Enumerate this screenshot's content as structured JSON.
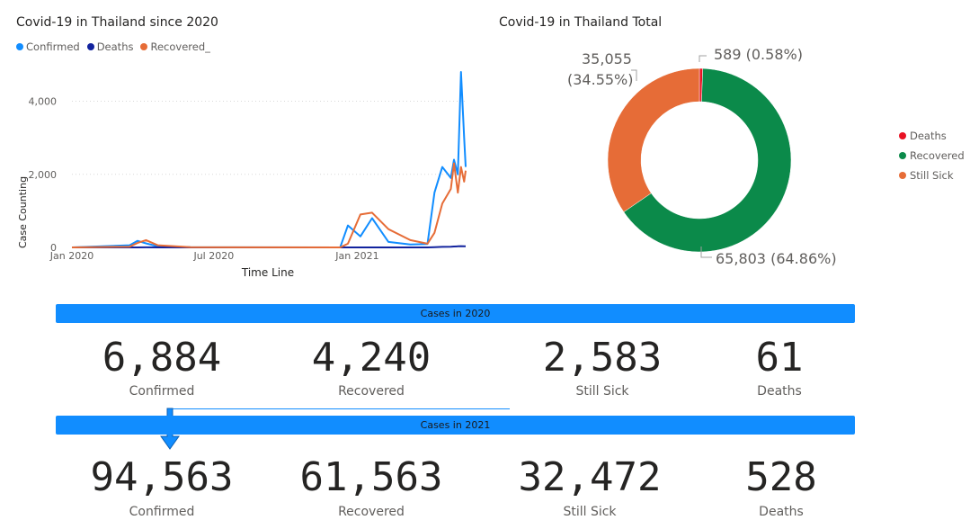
{
  "line_chart": {
    "title": "Covid-19 in Thailand since 2020",
    "legend": [
      {
        "name": "Confirmed",
        "color": "#118dff"
      },
      {
        "name": "Deaths",
        "color": "#12239e"
      },
      {
        "name": "Recovered_",
        "color": "#e66c37"
      }
    ],
    "xlabel": "Time Line",
    "ylabel": "Case Counting",
    "xticks": [
      "Jan 2020",
      "Jul 2020",
      "Jan 2021"
    ],
    "yticks": [
      "0",
      "2,000",
      "4,000"
    ]
  },
  "pie_chart": {
    "title": "Covid-19 in Thailand Total",
    "legend": [
      {
        "name": "Deaths",
        "color": "#e81123"
      },
      {
        "name": "Recovered",
        "color": "#0b8a4a"
      },
      {
        "name": "Still Sick",
        "color": "#e66c37"
      }
    ],
    "labels": {
      "deaths": "589 (0.58%)",
      "recovered": "65,803 (64.86%)",
      "still_sick_line1": "35,055",
      "still_sick_line2": "(34.55%)"
    }
  },
  "chart_data": [
    {
      "type": "line",
      "title": "Covid-19 in Thailand since 2020",
      "xlabel": "Time Line",
      "ylabel": "Case Counting",
      "x_range": [
        "2020-01-01",
        "2021-05-20"
      ],
      "ylim": [
        0,
        4800
      ],
      "grid": true,
      "legend_position": "top-left",
      "x": [
        "2020-01-01",
        "2020-03-15",
        "2020-03-25",
        "2020-04-05",
        "2020-04-20",
        "2020-06-01",
        "2020-12-10",
        "2020-12-20",
        "2021-01-05",
        "2021-01-20",
        "2021-02-10",
        "2021-03-10",
        "2021-04-01",
        "2021-04-10",
        "2021-04-20",
        "2021-05-01",
        "2021-05-05",
        "2021-05-10",
        "2021-05-14",
        "2021-05-18",
        "2021-05-20"
      ],
      "series": [
        {
          "name": "Confirmed",
          "color": "#118dff",
          "values": [
            0,
            60,
            180,
            110,
            30,
            5,
            0,
            600,
            300,
            800,
            150,
            80,
            90,
            1500,
            2200,
            1900,
            2400,
            2000,
            4800,
            3000,
            2200
          ]
        },
        {
          "name": "Deaths",
          "color": "#12239e",
          "values": [
            0,
            0,
            1,
            2,
            1,
            0,
            0,
            0,
            0,
            0,
            0,
            0,
            0,
            5,
            15,
            20,
            25,
            30,
            35,
            30,
            30
          ]
        },
        {
          "name": "Recovered_",
          "color": "#e66c37",
          "values": [
            0,
            20,
            120,
            200,
            60,
            5,
            0,
            100,
            900,
            950,
            500,
            200,
            100,
            400,
            1200,
            1600,
            2300,
            1500,
            2200,
            1800,
            2100
          ]
        }
      ]
    },
    {
      "type": "pie",
      "title": "Covid-19 in Thailand Total",
      "legend_position": "right",
      "categories": [
        "Deaths",
        "Recovered",
        "Still Sick"
      ],
      "values": [
        589,
        65803,
        35055
      ],
      "percents": [
        0.58,
        64.86,
        34.55
      ],
      "colors": [
        "#e81123",
        "#0b8a4a",
        "#e66c37"
      ]
    }
  ],
  "kpis_2020": {
    "banner": "Cases in 2020",
    "items": [
      {
        "value": "6,884",
        "label": "Confirmed"
      },
      {
        "value": "4,240",
        "label": "Recovered"
      },
      {
        "value": "2,583",
        "label": "Still Sick"
      },
      {
        "value": "61",
        "label": "Deaths"
      }
    ]
  },
  "kpis_2021": {
    "banner": "Cases in 2021",
    "items": [
      {
        "value": "94,563",
        "label": "Confirmed"
      },
      {
        "value": "61,563",
        "label": "Recovered"
      },
      {
        "value": "32,472",
        "label": "Still Sick"
      },
      {
        "value": "528",
        "label": "Deaths"
      }
    ]
  }
}
